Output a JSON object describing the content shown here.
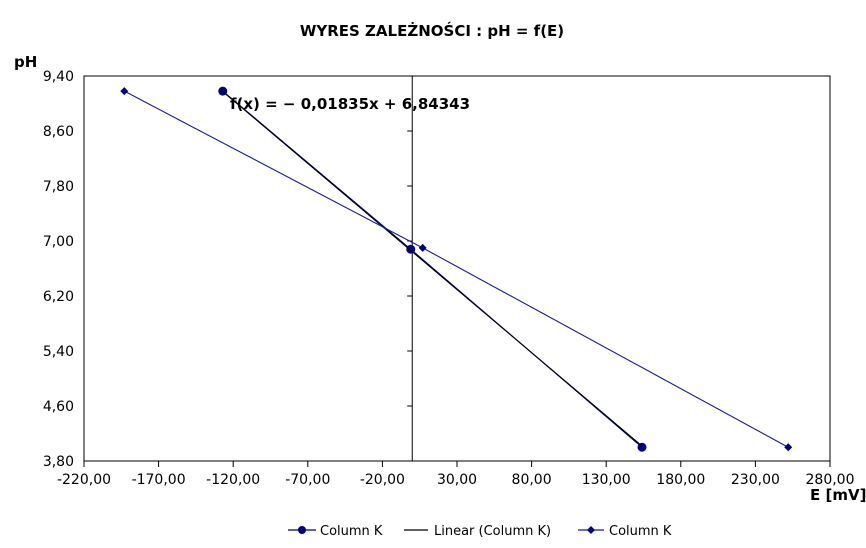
{
  "chart_data": {
    "type": "scatter",
    "title": "WYRES ZALEŻNOŚCI :  pH = f(E)",
    "xlabel": "E [mV]",
    "ylabel": "pH",
    "xlim": [
      -220,
      280
    ],
    "ylim": [
      3.8,
      9.4
    ],
    "x_ticks": [
      -220,
      -170,
      -120,
      -70,
      -20,
      30,
      80,
      130,
      180,
      230,
      280
    ],
    "x_tick_labels": [
      "-220,00",
      "-170,00",
      "-120,00",
      "-70,00",
      "-20,00",
      "30,00",
      "80,00",
      "130,00",
      "180,00",
      "230,00",
      "280,00"
    ],
    "y_ticks": [
      3.8,
      4.6,
      5.4,
      6.2,
      7.0,
      7.8,
      8.6,
      9.4
    ],
    "y_tick_labels": [
      "3,80",
      "4,60",
      "5,40",
      "6,20",
      "7,00",
      "7,80",
      "8,60",
      "9,40"
    ],
    "grid": false,
    "legend_position": "bottom",
    "annotation": "f(x) = − 0,01835x + 6,84343",
    "series": [
      {
        "name": "Column K",
        "marker": "circle",
        "color": "#000080",
        "x": [
          -127,
          -1,
          154
        ],
        "y": [
          9.18,
          6.88,
          4.0
        ]
      },
      {
        "name": "Linear (Column K)",
        "marker": "none",
        "color": "#000000",
        "x": [
          -127,
          154
        ],
        "y": [
          9.174,
          4.018
        ]
      },
      {
        "name": "Column K",
        "marker": "diamond",
        "color": "#1a1a9a",
        "x": [
          -193,
          7,
          252
        ],
        "y": [
          9.18,
          6.9,
          4.0
        ]
      }
    ]
  }
}
